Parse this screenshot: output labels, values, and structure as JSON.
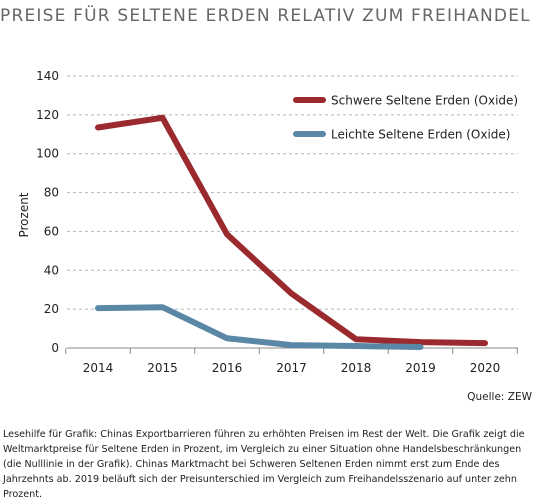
{
  "chart_data": {
    "type": "line",
    "title": "PREISE FÜR SELTENE ERDEN RELATIV ZUM FREIHANDEL",
    "xlabel": "",
    "ylabel": "Prozent",
    "categories": [
      "2014",
      "2015",
      "2016",
      "2017",
      "2018",
      "2019",
      "2020"
    ],
    "ylim": [
      0,
      140
    ],
    "yticks": [
      0,
      20,
      40,
      60,
      80,
      100,
      120,
      140
    ],
    "grid": true,
    "legend_position": "top-right",
    "series": [
      {
        "name": "Schwere Seltene Erden (Oxide)",
        "color": "#9b2a2f",
        "x": [
          2014,
          2015,
          2016,
          2017,
          2018,
          2019,
          2020
        ],
        "values": [
          113.5,
          118.5,
          58.5,
          28,
          4.5,
          3,
          2.5
        ]
      },
      {
        "name": "Leichte Seltene Erden (Oxide)",
        "color": "#5a87a6",
        "x": [
          2014,
          2015,
          2016,
          2017,
          2018,
          2019
        ],
        "values": [
          20.5,
          21,
          5,
          1.5,
          1,
          0.5
        ]
      }
    ]
  },
  "source": "Quelle: ZEW",
  "caption": "Lesehilfe für Grafik: Chinas Exportbarrieren führen zu erhöhten Preisen im Rest der Welt. Die Grafik zeigt die Weltmarktpreise für Seltene Erden in Prozent, im Vergleich zu einer Situation ohne Handelsbeschränkungen (die Nulllinie in der Grafik). Chinas Marktmacht bei Schweren Seltenen Erden nimmt erst zum Ende des Jahrzehnts ab. 2019 beläuft sich der Preisunterschied im Vergleich zum Freihandelsszenario auf unter zehn Prozent."
}
